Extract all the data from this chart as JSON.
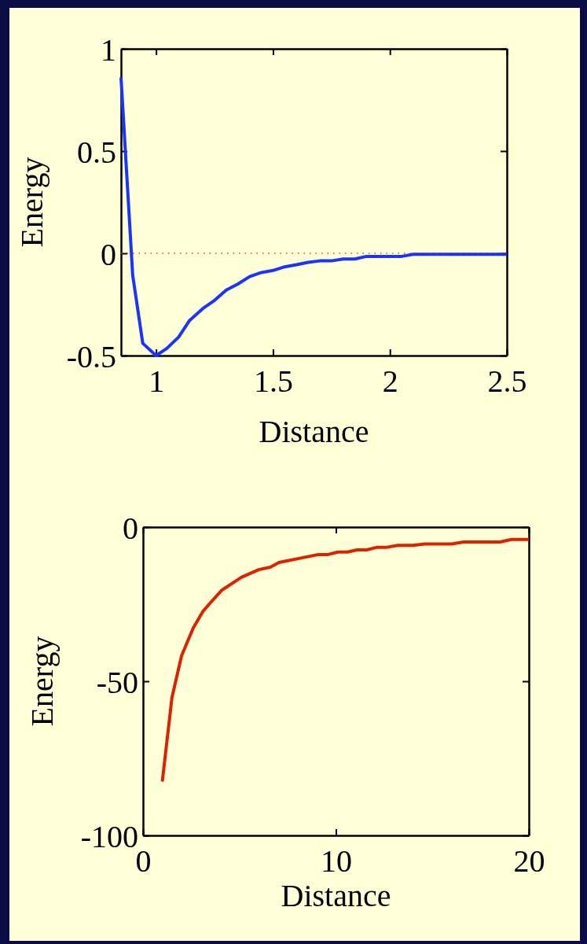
{
  "chart_data": [
    {
      "type": "line",
      "xlabel": "Distance",
      "ylabel": "Energy",
      "xlim": [
        0.85,
        2.5
      ],
      "ylim": [
        -0.5,
        1
      ],
      "xticks": [
        1,
        1.5,
        2,
        2.5
      ],
      "yticks": [
        -0.5,
        0,
        0.5,
        1
      ],
      "grid": false,
      "marker": "none",
      "line_style": "solid",
      "ref_lines": [
        {
          "axis": "y",
          "value": 0,
          "color": "#ff3b1f",
          "line_style": "dotted"
        }
      ],
      "series": [
        {
          "color": "#1a33ff",
          "x": [
            0.85,
            0.9,
            0.943,
            1.0,
            1.045,
            1.096,
            1.142,
            1.2,
            1.25,
            1.3,
            1.35,
            1.4,
            1.45,
            1.5,
            1.55,
            1.6,
            1.65,
            1.7,
            1.75,
            1.8,
            1.85,
            1.9,
            2.05,
            2.1,
            2.5
          ],
          "values": [
            0.86,
            -0.108,
            -0.44,
            -0.5,
            -0.466,
            -0.41,
            -0.33,
            -0.27,
            -0.23,
            -0.18,
            -0.15,
            -0.114,
            -0.094,
            -0.084,
            -0.066,
            -0.056,
            -0.044,
            -0.037,
            -0.037,
            -0.028,
            -0.028,
            -0.015,
            -0.015,
            -0.005,
            -0.005
          ]
        }
      ]
    },
    {
      "type": "line",
      "xlabel": "Distance",
      "ylabel": "Energy",
      "xlim": [
        0,
        20
      ],
      "ylim": [
        -100,
        0
      ],
      "xticks": [
        0,
        10,
        20
      ],
      "yticks": [
        -100,
        -50,
        0
      ],
      "grid": false,
      "marker": "none",
      "line_style": "solid",
      "series": [
        {
          "color": "#dd2200",
          "x": [
            1,
            1.5,
            2,
            2.6,
            3.1,
            3.6,
            4.1,
            5.1,
            6,
            6.6,
            7.05,
            9.1,
            9.6,
            10.1,
            10.6,
            11.1,
            11.6,
            12.1,
            12.6,
            13.2,
            14,
            14.6,
            16,
            16.6,
            18.5,
            19.1,
            20
          ],
          "values": [
            -82.5,
            -55.3,
            -41.7,
            -32.8,
            -27.4,
            -23.8,
            -20.4,
            -16.3,
            -13.8,
            -13,
            -11.5,
            -8.9,
            -8.9,
            -8.1,
            -8.1,
            -7.4,
            -7.4,
            -6.6,
            -6.6,
            -5.95,
            -5.95,
            -5.5,
            -5.5,
            -4.85,
            -4.85,
            -4,
            -4
          ]
        }
      ]
    }
  ]
}
